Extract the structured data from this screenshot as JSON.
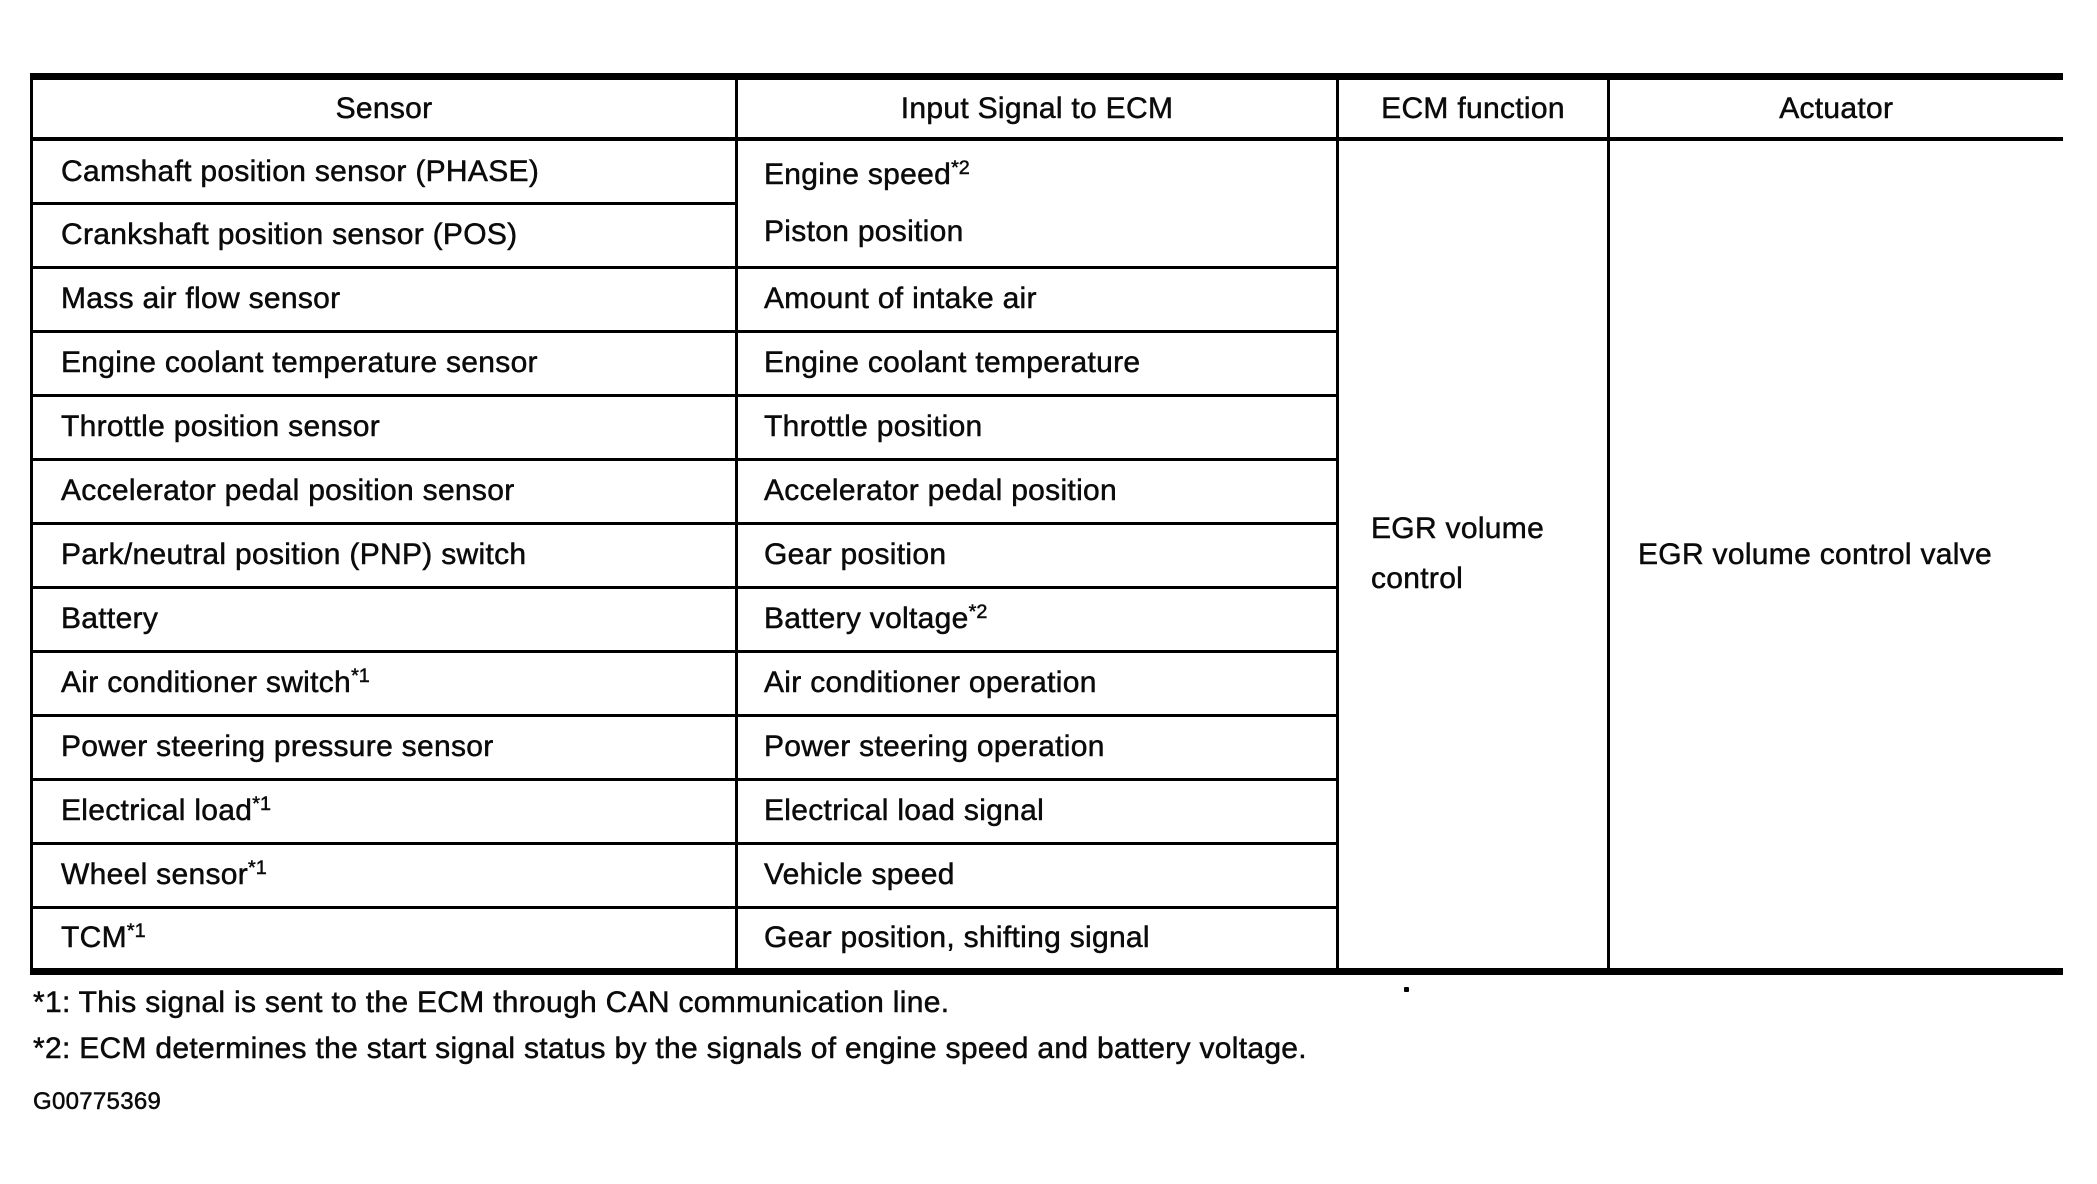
{
  "page": {
    "background": "#ffffff",
    "ink": "#0b0b0b",
    "border_color": "#000000"
  },
  "table": {
    "headers": [
      "Sensor",
      "Input Signal to ECM",
      "ECM function",
      "Actuator"
    ],
    "rows": [
      {
        "sensor": {
          "text": "Camshaft position sensor (PHASE)",
          "sup": ""
        },
        "signal": {
          "rowspan": 2,
          "lines": [
            {
              "text": "Engine speed",
              "sup": "*2"
            },
            {
              "text": "Piston position",
              "sup": ""
            }
          ]
        }
      },
      {
        "sensor": {
          "text": "Crankshaft position sensor (POS)",
          "sup": ""
        },
        "signal": null
      },
      {
        "sensor": {
          "text": "Mass air flow sensor",
          "sup": ""
        },
        "signal": {
          "rowspan": 1,
          "lines": [
            {
              "text": "Amount of intake air",
              "sup": ""
            }
          ]
        }
      },
      {
        "sensor": {
          "text": "Engine coolant temperature sensor",
          "sup": ""
        },
        "signal": {
          "rowspan": 1,
          "lines": [
            {
              "text": "Engine coolant temperature",
              "sup": ""
            }
          ]
        }
      },
      {
        "sensor": {
          "text": "Throttle position sensor",
          "sup": ""
        },
        "signal": {
          "rowspan": 1,
          "lines": [
            {
              "text": "Throttle position",
              "sup": ""
            }
          ]
        }
      },
      {
        "sensor": {
          "text": "Accelerator pedal position sensor",
          "sup": ""
        },
        "signal": {
          "rowspan": 1,
          "lines": [
            {
              "text": "Accelerator pedal position",
              "sup": ""
            }
          ]
        }
      },
      {
        "sensor": {
          "text": "Park/neutral position (PNP) switch",
          "sup": ""
        },
        "signal": {
          "rowspan": 1,
          "lines": [
            {
              "text": "Gear position",
              "sup": ""
            }
          ]
        }
      },
      {
        "sensor": {
          "text": "Battery",
          "sup": ""
        },
        "signal": {
          "rowspan": 1,
          "lines": [
            {
              "text": "Battery voltage",
              "sup": "*2"
            }
          ]
        }
      },
      {
        "sensor": {
          "text": "Air conditioner switch",
          "sup": "*1"
        },
        "signal": {
          "rowspan": 1,
          "lines": [
            {
              "text": "Air conditioner operation",
              "sup": ""
            }
          ]
        }
      },
      {
        "sensor": {
          "text": "Power steering pressure sensor",
          "sup": ""
        },
        "signal": {
          "rowspan": 1,
          "lines": [
            {
              "text": "Power steering operation",
              "sup": ""
            }
          ]
        }
      },
      {
        "sensor": {
          "text": "Electrical load",
          "sup": "*1"
        },
        "signal": {
          "rowspan": 1,
          "lines": [
            {
              "text": "Electrical load signal",
              "sup": ""
            }
          ]
        }
      },
      {
        "sensor": {
          "text": "Wheel sensor",
          "sup": "*1"
        },
        "signal": {
          "rowspan": 1,
          "lines": [
            {
              "text": "Vehicle speed",
              "sup": ""
            }
          ]
        }
      },
      {
        "sensor": {
          "text": "TCM",
          "sup": "*1"
        },
        "signal": {
          "rowspan": 1,
          "lines": [
            {
              "text": "Gear position, shifting signal",
              "sup": ""
            }
          ]
        }
      }
    ],
    "merged": {
      "ecm_function": {
        "text": "EGR volume control",
        "rowspan": 13
      },
      "actuator": {
        "text": "EGR volume control valve",
        "rowspan": 13
      }
    }
  },
  "footnotes": [
    "*1: This signal is sent to the ECM through CAN communication line.",
    "*2: ECM determines the start signal status by the signals of engine speed and battery voltage."
  ],
  "figure_code": "G00775369"
}
